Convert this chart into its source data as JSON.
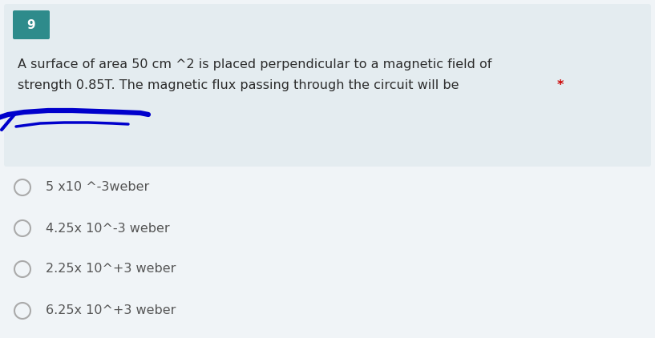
{
  "background_color": "#f0f4f7",
  "question_box_color": "#e4ecf0",
  "number_box_color": "#2e8b8b",
  "number_text": "9",
  "number_text_color": "#ffffff",
  "question_line1": "A surface of area 50 cm ^2 is placed perpendicular to a magnetic field of",
  "question_line2": "strength 0.85T. The magnetic flux passing through the circuit will be ",
  "asterisk": "*",
  "asterisk_color": "#cc0000",
  "question_text_color": "#2d2d2d",
  "options": [
    "5 x10 ^-3weber",
    "4.25x 10^-3 weber",
    "2.25x 10^+3 weber",
    "6.25x 10^+3 weber"
  ],
  "option_text_color": "#555555",
  "circle_edge_color": "#aaaaaa",
  "question_fontsize": 11.5,
  "option_fontsize": 11.5,
  "number_fontsize": 11,
  "annotation_color": "#0000cc"
}
